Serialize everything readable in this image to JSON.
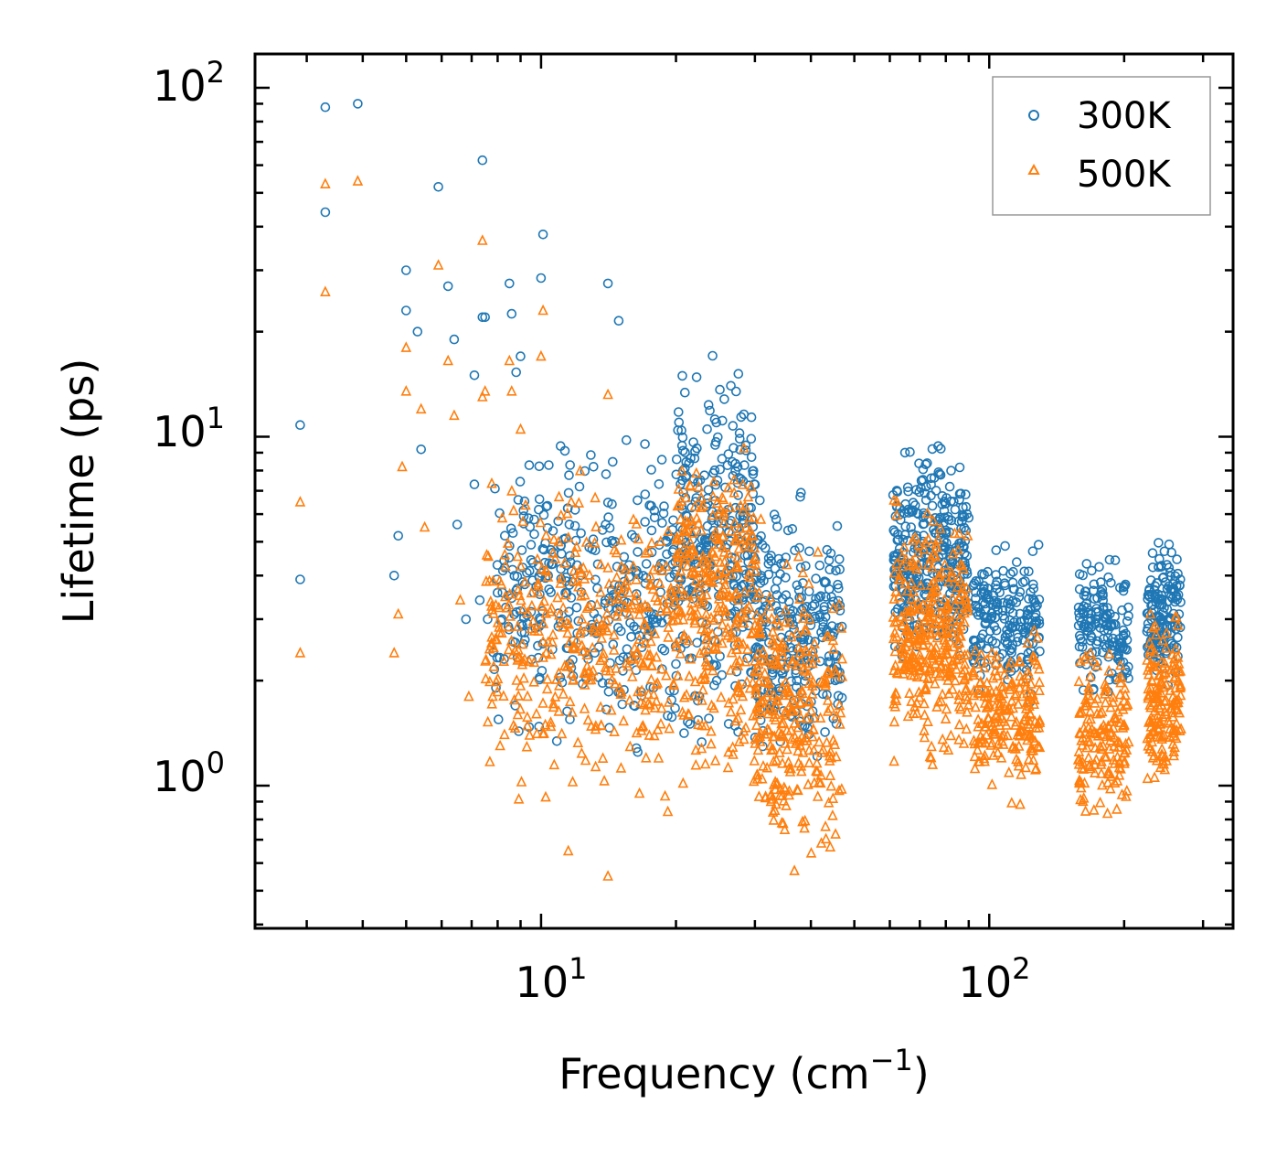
{
  "chart_data": {
    "type": "scatter",
    "title": "",
    "xlabel": "Frequency (cm",
    "xlabel_sup": "−1",
    "xlabel_close": ")",
    "ylabel": "Lifetime (ps)",
    "xscale": "log",
    "yscale": "log",
    "xlim": [
      2.3,
      350
    ],
    "ylim": [
      0.39,
      125
    ],
    "x_tick_labels": [
      {
        "base": "10",
        "exp": "1",
        "value": 10
      },
      {
        "base": "10",
        "exp": "2",
        "value": 100
      }
    ],
    "y_tick_labels": [
      {
        "base": "10",
        "exp": "0",
        "value": 1
      },
      {
        "base": "10",
        "exp": "1",
        "value": 10
      },
      {
        "base": "10",
        "exp": "2",
        "value": 100
      }
    ],
    "legend": {
      "position": "top-right"
    },
    "series": [
      {
        "name": "300K",
        "color": "#1f77b4",
        "marker": "circle",
        "outliers": [
          [
            2.9,
            10.8
          ],
          [
            3.3,
            88
          ],
          [
            3.9,
            90
          ],
          [
            3.3,
            44
          ],
          [
            2.9,
            3.9
          ],
          [
            5.0,
            30
          ],
          [
            5.0,
            23
          ],
          [
            5.3,
            20
          ],
          [
            5.9,
            52
          ],
          [
            6.2,
            27
          ],
          [
            6.4,
            19
          ],
          [
            4.7,
            4.0
          ],
          [
            4.8,
            5.2
          ],
          [
            5.4,
            9.2
          ],
          [
            7.4,
            62
          ],
          [
            7.4,
            22
          ],
          [
            7.5,
            22
          ],
          [
            8.5,
            27.5
          ],
          [
            8.6,
            22.5
          ],
          [
            9.0,
            17
          ],
          [
            10.0,
            28.5
          ],
          [
            10.1,
            38
          ],
          [
            14.1,
            27.5
          ],
          [
            14.9,
            21.5
          ],
          [
            8.8,
            15.3
          ],
          [
            7.1,
            15
          ],
          [
            6.5,
            5.6
          ],
          [
            7.1,
            7.3
          ],
          [
            6.8,
            3.0
          ],
          [
            7.6,
            3.0
          ],
          [
            7.3,
            3.4
          ]
        ],
        "regions": [
          {
            "x_range": [
              7.8,
              31
            ],
            "y_range": [
              1.05,
              12.5
            ],
            "n": 520
          },
          {
            "x_range": [
              20,
              30
            ],
            "y_range": [
              2.0,
              20
            ],
            "n": 150
          },
          {
            "x_range": [
              30,
              47
            ],
            "y_range": [
              0.85,
              8.0
            ],
            "n": 260
          },
          {
            "x_range": [
              61,
              90
            ],
            "y_range": [
              1.8,
              11.8
            ],
            "n": 330
          },
          {
            "x_range": [
              92,
              130
            ],
            "y_range": [
              1.6,
              5.5
            ],
            "n": 200
          },
          {
            "x_range": [
              158,
              205
            ],
            "y_range": [
              1.6,
              5.0
            ],
            "n": 150
          },
          {
            "x_range": [
              225,
              268
            ],
            "y_range": [
              1.8,
              5.8
            ],
            "n": 150
          }
        ]
      },
      {
        "name": "500K",
        "color": "#ff7f0e",
        "marker": "triangle",
        "outliers": [
          [
            2.9,
            6.5
          ],
          [
            3.3,
            53
          ],
          [
            3.9,
            54
          ],
          [
            3.3,
            26
          ],
          [
            2.9,
            2.4
          ],
          [
            5.0,
            18
          ],
          [
            5.0,
            13.5
          ],
          [
            5.4,
            12
          ],
          [
            5.9,
            31
          ],
          [
            6.2,
            16.5
          ],
          [
            6.4,
            11.5
          ],
          [
            4.7,
            2.4
          ],
          [
            4.8,
            3.1
          ],
          [
            5.5,
            5.5
          ],
          [
            7.4,
            36.5
          ],
          [
            7.4,
            13
          ],
          [
            7.5,
            13.5
          ],
          [
            8.5,
            16.5
          ],
          [
            8.6,
            13.5
          ],
          [
            9.0,
            10.5
          ],
          [
            10.0,
            17
          ],
          [
            10.1,
            23
          ],
          [
            14.1,
            13.2
          ],
          [
            4.9,
            8.2
          ],
          [
            6.6,
            3.4
          ],
          [
            6.9,
            1.8
          ],
          [
            7.8,
            1.8
          ],
          [
            8.1,
            1.3
          ],
          [
            11.5,
            0.65
          ],
          [
            14.1,
            0.55
          ]
        ],
        "regions": [
          {
            "x_range": [
              7.5,
              31
            ],
            "y_range": [
              0.7,
              9.5
            ],
            "n": 560
          },
          {
            "x_range": [
              20,
              30
            ],
            "y_range": [
              1.8,
              11
            ],
            "n": 150
          },
          {
            "x_range": [
              30,
              47
            ],
            "y_range": [
              0.45,
              5.5
            ],
            "n": 280
          },
          {
            "x_range": [
              61,
              90
            ],
            "y_range": [
              1.0,
              7.5
            ],
            "n": 340
          },
          {
            "x_range": [
              92,
              130
            ],
            "y_range": [
              0.85,
              3.0
            ],
            "n": 200
          },
          {
            "x_range": [
              158,
              205
            ],
            "y_range": [
              0.65,
              3.0
            ],
            "n": 160
          },
          {
            "x_range": [
              225,
              268
            ],
            "y_range": [
              0.85,
              3.5
            ],
            "n": 160
          }
        ]
      }
    ]
  }
}
